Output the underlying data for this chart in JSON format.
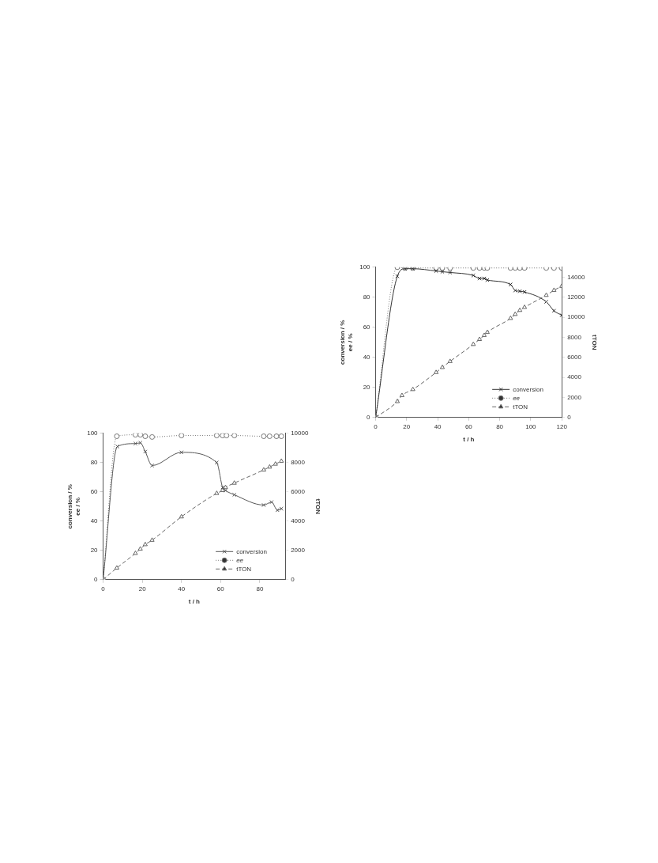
{
  "chart_data": [
    {
      "type": "line",
      "xlabel": "t / h",
      "ylabel": "conversion / %\nee / %",
      "y2label": "tTON",
      "xlim": [
        0,
        93
      ],
      "xticks": [
        0,
        20,
        40,
        60,
        80
      ],
      "ylim": [
        0,
        100
      ],
      "yticks": [
        0,
        20,
        40,
        60,
        80,
        100
      ],
      "y2lim": [
        0,
        10000
      ],
      "y2ticks": [
        0,
        2000,
        4000,
        6000,
        8000,
        10000
      ],
      "grid": false,
      "legend": "bottom right",
      "series": [
        {
          "name": "conversion",
          "color": "#555555",
          "marker": "cross",
          "line_style": "solid",
          "x": [
            0,
            7.3,
            16.5,
            19,
            21.5,
            25,
            40,
            58,
            61,
            62.5,
            67,
            82,
            86,
            89,
            91
          ],
          "values": [
            0,
            91,
            93,
            93.5,
            87.5,
            78,
            87,
            80,
            63,
            61,
            58,
            51,
            53,
            47.5,
            48.5
          ]
        },
        {
          "name": "ee",
          "color": "#777777",
          "marker": "circle",
          "line_style": "dotted",
          "x": [
            0,
            7,
            16.5,
            19,
            21.5,
            25,
            40,
            58,
            61,
            63,
            67,
            82,
            85,
            88.5,
            91
          ],
          "values": [
            0,
            98,
            99,
            99,
            98,
            97.5,
            98.5,
            98.5,
            98.5,
            98.5,
            98.5,
            98,
            98,
            98,
            98
          ]
        },
        {
          "name": "tTON",
          "color": "#666666",
          "marker": "triangle",
          "line_style": "dashed",
          "axis": "y2",
          "x": [
            0,
            7,
            16.5,
            19,
            21.5,
            25,
            40,
            58,
            61,
            62.5,
            67,
            82,
            85,
            88,
            91
          ],
          "values": [
            0,
            800,
            1800,
            2100,
            2400,
            2700,
            4300,
            5900,
            6100,
            6300,
            6600,
            7500,
            7700,
            7900,
            8100
          ]
        }
      ]
    },
    {
      "type": "line",
      "xlabel": "t / h",
      "ylabel": "conversion / %\nee / %",
      "y2label": "tTON",
      "xlim": [
        0,
        120
      ],
      "xticks": [
        0,
        20,
        40,
        60,
        80,
        100,
        120
      ],
      "ylim": [
        0,
        100
      ],
      "yticks": [
        0,
        20,
        40,
        60,
        80,
        100
      ],
      "y2lim": [
        0,
        15000
      ],
      "y2ticks": [
        0,
        2000,
        4000,
        6000,
        8000,
        10000,
        12000,
        14000
      ],
      "grid": false,
      "legend": "bottom right",
      "series": [
        {
          "name": "conversion",
          "color": "#333333",
          "marker": "cross",
          "line_style": "solid",
          "x": [
            0,
            14,
            19,
            24,
            39,
            43,
            48,
            63,
            67,
            70,
            72,
            87,
            90,
            93,
            96,
            110,
            115,
            120
          ],
          "values": [
            0,
            94,
            99,
            99,
            97.5,
            97,
            96.5,
            94.5,
            92.5,
            92.5,
            91.5,
            88.5,
            84.5,
            84,
            83.5,
            77,
            71,
            68
          ]
        },
        {
          "name": "ee",
          "color": "#777777",
          "marker": "circle",
          "line_style": "dotted",
          "x": [
            0,
            14,
            19,
            24,
            39,
            43,
            48,
            63,
            67,
            70,
            72,
            87,
            90,
            93,
            96,
            110,
            115,
            120
          ],
          "values": [
            0,
            100,
            99.5,
            99.5,
            99.5,
            99.5,
            99.5,
            99.5,
            99.5,
            99.5,
            99.5,
            99.5,
            99.5,
            99.5,
            99.5,
            99.5,
            99.5,
            99.5
          ]
        },
        {
          "name": "tTON",
          "color": "#666666",
          "marker": "triangle",
          "line_style": "dashed",
          "axis": "y2",
          "x": [
            0,
            14,
            17,
            24,
            39,
            43,
            48,
            63,
            67,
            70,
            72,
            87,
            90,
            93,
            96,
            110,
            115,
            120
          ],
          "values": [
            0,
            1600,
            2200,
            2800,
            4500,
            5000,
            5600,
            7300,
            7800,
            8200,
            8500,
            9900,
            10300,
            10700,
            11000,
            12200,
            12700,
            13100
          ]
        }
      ]
    }
  ]
}
